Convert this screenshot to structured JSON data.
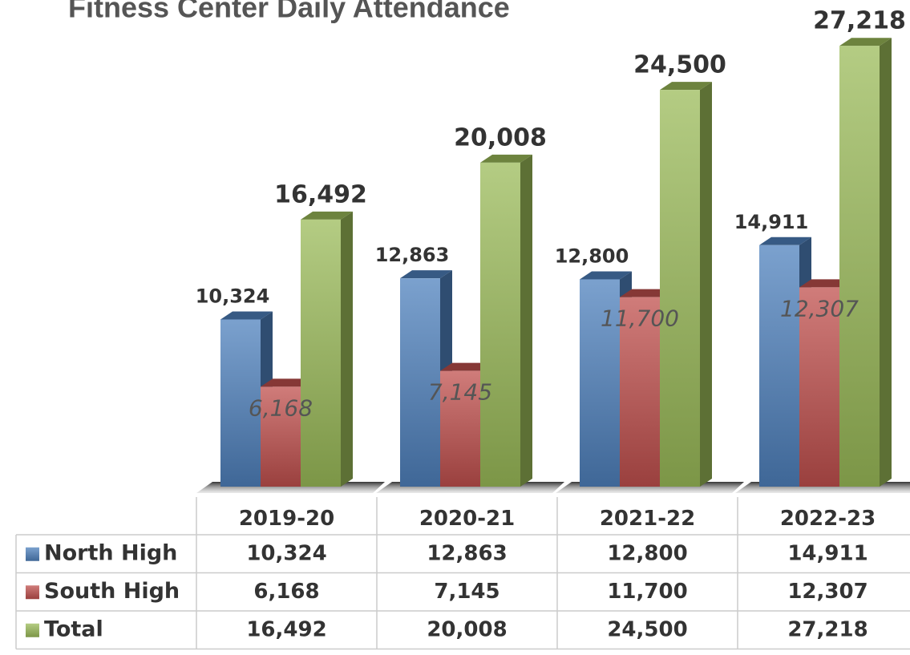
{
  "chart_data": {
    "type": "bar3d",
    "title": "Fitness Center Daily Attendance",
    "categories": [
      "2019-20",
      "2020-21",
      "2021-22",
      "2022-23"
    ],
    "series": [
      {
        "name": "North High",
        "color": "#4f81bd",
        "values": [
          10324,
          12863,
          12800,
          14911
        ],
        "value_labels": [
          "10,324",
          "12,863",
          "12,800",
          "14,911"
        ]
      },
      {
        "name": "South High",
        "color": "#c0504d",
        "values": [
          6168,
          7145,
          11700,
          12307
        ],
        "value_labels": [
          "6,168",
          "7,145",
          "11,700",
          "12,307"
        ]
      },
      {
        "name": "Total",
        "color": "#9bbb59",
        "values": [
          16492,
          20008,
          24500,
          27218
        ],
        "value_labels": [
          "16,492",
          "20,008",
          "24,500",
          "27,218"
        ]
      }
    ],
    "data_table": true
  }
}
